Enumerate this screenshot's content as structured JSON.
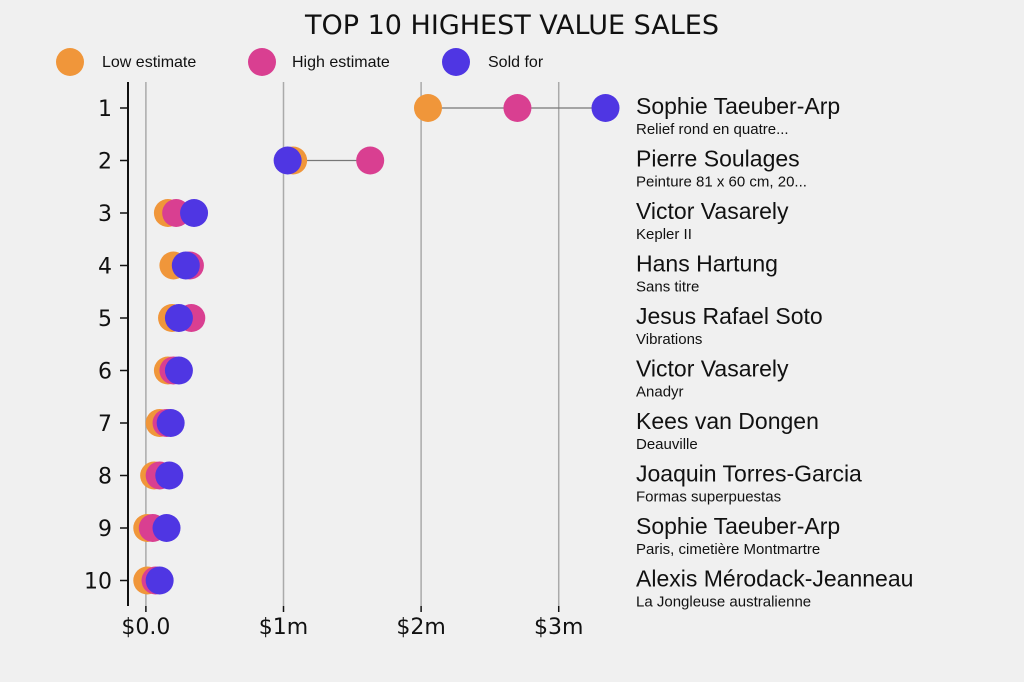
{
  "chart_data": {
    "type": "dot-range",
    "title": "TOP 10 HIGHEST VALUE SALES",
    "legend": [
      {
        "key": "low",
        "label": "Low estimate",
        "color": "#f0963a"
      },
      {
        "key": "high",
        "label": "High estimate",
        "color": "#d93f91"
      },
      {
        "key": "sold",
        "label": "Sold for",
        "color": "#4f36e3"
      }
    ],
    "x_ticks": [
      {
        "value": 0,
        "label": "$0.0"
      },
      {
        "value": 1000000,
        "label": "$1m"
      },
      {
        "value": 2000000,
        "label": "$2m"
      },
      {
        "value": 3000000,
        "label": "$3m"
      }
    ],
    "xlim": [
      -130000,
      3300000
    ],
    "rows": [
      {
        "rank": "1",
        "artist": "Sophie Taeuber-Arp",
        "work": "Relief rond en quatre...",
        "low": 2050000,
        "high": 2700000,
        "sold": 3340000
      },
      {
        "rank": "2",
        "artist": "Pierre Soulages",
        "work": "Peinture 81 x 60 cm, 20...",
        "low": 1070000,
        "high": 1630000,
        "sold": 1030000
      },
      {
        "rank": "3",
        "artist": "Victor Vasarely",
        "work": "Kepler II",
        "low": 160000,
        "high": 220000,
        "sold": 350000
      },
      {
        "rank": "4",
        "artist": "Hans Hartung",
        "work": "Sans titre",
        "low": 200000,
        "high": 320000,
        "sold": 290000
      },
      {
        "rank": "5",
        "artist": "Jesus Rafael Soto",
        "work": "Vibrations",
        "low": 190000,
        "high": 330000,
        "sold": 240000
      },
      {
        "rank": "6",
        "artist": "Victor Vasarely",
        "work": "Anadyr",
        "low": 160000,
        "high": 200000,
        "sold": 240000
      },
      {
        "rank": "7",
        "artist": "Kees van Dongen",
        "work": "Deauville",
        "low": 100000,
        "high": 150000,
        "sold": 180000
      },
      {
        "rank": "8",
        "artist": "Joaquin Torres-Garcia",
        "work": "Formas superpuestas",
        "low": 60000,
        "high": 100000,
        "sold": 170000
      },
      {
        "rank": "9",
        "artist": "Sophie Taeuber-Arp",
        "work": "Paris, cimetière Montmartre",
        "low": 10000,
        "high": 50000,
        "sold": 150000
      },
      {
        "rank": "10",
        "artist": "Alexis Mérodack-Jeanneau",
        "work": "La Jongleuse australienne",
        "low": 10000,
        "high": 70000,
        "sold": 100000
      }
    ]
  }
}
